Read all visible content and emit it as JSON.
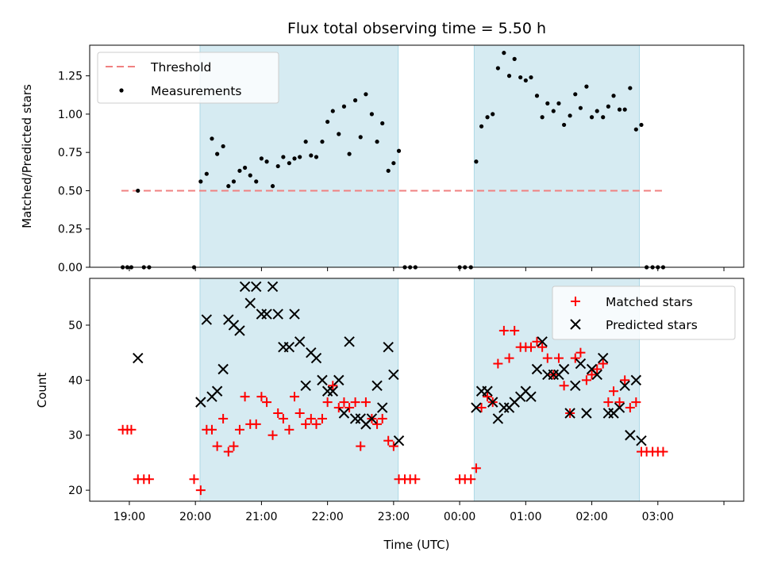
{
  "chart_data": [
    {
      "type": "scatter",
      "title": "Flux total observing time = 5.50 h",
      "xlabel": "",
      "ylabel": "Matched/Predicted stars",
      "xlim": [
        -0.6,
        9.3
      ],
      "ylim": [
        0,
        1.45
      ],
      "yticks": [
        0,
        0.25,
        0.5,
        0.75,
        1.0,
        1.25
      ],
      "yticklabels": [
        "0.00",
        "0.25",
        "0.50",
        "0.75",
        "1.00",
        "1.25"
      ],
      "grid": false,
      "legend_position": "top-left",
      "shaded_intervals": [
        [
          1.07,
          4.07
        ],
        [
          5.22,
          7.72
        ]
      ],
      "threshold": {
        "name": "Threshold",
        "y": 0.5,
        "x_range": [
          -0.12,
          8.1
        ],
        "color": "#f08080"
      },
      "series": [
        {
          "name": "Measurements",
          "color": "#000000",
          "marker": "dot",
          "points": [
            [
              -0.1,
              0
            ],
            [
              -0.03,
              0
            ],
            [
              0.03,
              0
            ],
            [
              0.13,
              0.5
            ],
            [
              0.22,
              0
            ],
            [
              0.3,
              0
            ],
            [
              0.98,
              0
            ],
            [
              1.08,
              0.56
            ],
            [
              1.17,
              0.61
            ],
            [
              1.25,
              0.84
            ],
            [
              1.33,
              0.74
            ],
            [
              1.42,
              0.79
            ],
            [
              1.5,
              0.53
            ],
            [
              1.58,
              0.56
            ],
            [
              1.67,
              0.63
            ],
            [
              1.75,
              0.65
            ],
            [
              1.83,
              0.6
            ],
            [
              1.92,
              0.56
            ],
            [
              2.0,
              0.71
            ],
            [
              2.08,
              0.69
            ],
            [
              2.17,
              0.53
            ],
            [
              2.25,
              0.66
            ],
            [
              2.33,
              0.72
            ],
            [
              2.42,
              0.68
            ],
            [
              2.5,
              0.71
            ],
            [
              2.58,
              0.72
            ],
            [
              2.67,
              0.82
            ],
            [
              2.75,
              0.73
            ],
            [
              2.83,
              0.72
            ],
            [
              2.92,
              0.82
            ],
            [
              3.0,
              0.95
            ],
            [
              3.08,
              1.02
            ],
            [
              3.17,
              0.87
            ],
            [
              3.25,
              1.05
            ],
            [
              3.33,
              0.74
            ],
            [
              3.42,
              1.09
            ],
            [
              3.5,
              0.85
            ],
            [
              3.58,
              1.13
            ],
            [
              3.67,
              1.0
            ],
            [
              3.75,
              0.82
            ],
            [
              3.83,
              0.94
            ],
            [
              3.92,
              0.63
            ],
            [
              4.0,
              0.68
            ],
            [
              4.08,
              0.76
            ],
            [
              4.17,
              0
            ],
            [
              4.25,
              0
            ],
            [
              4.33,
              0
            ],
            [
              5.0,
              0
            ],
            [
              5.08,
              0
            ],
            [
              5.17,
              0
            ],
            [
              5.25,
              0.69
            ],
            [
              5.33,
              0.92
            ],
            [
              5.42,
              0.98
            ],
            [
              5.5,
              1.0
            ],
            [
              5.58,
              1.3
            ],
            [
              5.67,
              1.4
            ],
            [
              5.75,
              1.25
            ],
            [
              5.83,
              1.36
            ],
            [
              5.92,
              1.24
            ],
            [
              6.0,
              1.22
            ],
            [
              6.08,
              1.24
            ],
            [
              6.17,
              1.12
            ],
            [
              6.25,
              0.98
            ],
            [
              6.33,
              1.07
            ],
            [
              6.42,
              1.02
            ],
            [
              6.5,
              1.07
            ],
            [
              6.58,
              0.93
            ],
            [
              6.67,
              0.99
            ],
            [
              6.75,
              1.13
            ],
            [
              6.83,
              1.04
            ],
            [
              6.92,
              1.18
            ],
            [
              7.0,
              0.98
            ],
            [
              7.08,
              1.02
            ],
            [
              7.17,
              0.98
            ],
            [
              7.25,
              1.05
            ],
            [
              7.33,
              1.12
            ],
            [
              7.42,
              1.03
            ],
            [
              7.5,
              1.03
            ],
            [
              7.58,
              1.17
            ],
            [
              7.67,
              0.9
            ],
            [
              7.75,
              0.93
            ],
            [
              7.83,
              0
            ],
            [
              7.92,
              0
            ],
            [
              8.0,
              0
            ],
            [
              8.08,
              0
            ]
          ]
        }
      ]
    },
    {
      "type": "scatter",
      "title": "",
      "xlabel": "Time (UTC)",
      "ylabel": "Count",
      "xlim": [
        -0.6,
        9.3
      ],
      "ylim": [
        18,
        58.5
      ],
      "xticks": [
        0,
        1,
        2,
        3,
        4,
        5,
        6,
        7,
        8,
        9
      ],
      "xticklabels": [
        "19:00",
        "20:00",
        "21:00",
        "22:00",
        "23:00",
        "00:00",
        "01:00",
        "02:00",
        "03:00",
        ""
      ],
      "yticks": [
        20,
        30,
        40,
        50
      ],
      "yticklabels": [
        "20",
        "30",
        "40",
        "50"
      ],
      "grid": false,
      "legend_position": "top-right",
      "shaded_intervals": [
        [
          1.07,
          4.07
        ],
        [
          5.22,
          7.72
        ]
      ],
      "series": [
        {
          "name": "Matched stars",
          "color": "#ff0000",
          "marker": "plus",
          "points": [
            [
              -0.1,
              31
            ],
            [
              -0.03,
              31
            ],
            [
              0.03,
              31
            ],
            [
              0.13,
              22
            ],
            [
              0.22,
              22
            ],
            [
              0.3,
              22
            ],
            [
              0.98,
              22
            ],
            [
              1.08,
              20
            ],
            [
              1.17,
              31
            ],
            [
              1.25,
              31
            ],
            [
              1.33,
              28
            ],
            [
              1.42,
              33
            ],
            [
              1.5,
              27
            ],
            [
              1.58,
              28
            ],
            [
              1.67,
              31
            ],
            [
              1.75,
              37
            ],
            [
              1.83,
              32
            ],
            [
              1.92,
              32
            ],
            [
              2.0,
              37
            ],
            [
              2.08,
              36
            ],
            [
              2.17,
              30
            ],
            [
              2.25,
              34
            ],
            [
              2.33,
              33
            ],
            [
              2.42,
              31
            ],
            [
              2.5,
              37
            ],
            [
              2.58,
              34
            ],
            [
              2.67,
              32
            ],
            [
              2.75,
              33
            ],
            [
              2.83,
              32
            ],
            [
              2.92,
              33
            ],
            [
              3.0,
              36
            ],
            [
              3.08,
              39
            ],
            [
              3.17,
              35
            ],
            [
              3.25,
              36
            ],
            [
              3.33,
              35
            ],
            [
              3.42,
              36
            ],
            [
              3.5,
              28
            ],
            [
              3.58,
              36
            ],
            [
              3.67,
              33
            ],
            [
              3.75,
              32
            ],
            [
              3.83,
              33
            ],
            [
              3.92,
              29
            ],
            [
              4.0,
              28
            ],
            [
              4.08,
              22
            ],
            [
              4.17,
              22
            ],
            [
              4.25,
              22
            ],
            [
              4.33,
              22
            ],
            [
              5.0,
              22
            ],
            [
              5.08,
              22
            ],
            [
              5.17,
              22
            ],
            [
              5.25,
              24
            ],
            [
              5.33,
              35
            ],
            [
              5.42,
              37
            ],
            [
              5.5,
              36
            ],
            [
              5.58,
              43
            ],
            [
              5.67,
              49
            ],
            [
              5.75,
              44
            ],
            [
              5.83,
              49
            ],
            [
              5.92,
              46
            ],
            [
              6.0,
              46
            ],
            [
              6.08,
              46
            ],
            [
              6.17,
              47
            ],
            [
              6.25,
              46
            ],
            [
              6.33,
              44
            ],
            [
              6.42,
              41
            ],
            [
              6.5,
              44
            ],
            [
              6.58,
              39
            ],
            [
              6.67,
              34
            ],
            [
              6.75,
              44
            ],
            [
              6.83,
              45
            ],
            [
              6.92,
              40
            ],
            [
              7.0,
              41
            ],
            [
              7.08,
              42
            ],
            [
              7.17,
              43
            ],
            [
              7.25,
              36
            ],
            [
              7.33,
              38
            ],
            [
              7.42,
              36
            ],
            [
              7.5,
              40
            ],
            [
              7.58,
              35
            ],
            [
              7.67,
              36
            ],
            [
              7.75,
              27
            ],
            [
              7.83,
              27
            ],
            [
              7.92,
              27
            ],
            [
              8.0,
              27
            ],
            [
              8.08,
              27
            ]
          ]
        },
        {
          "name": "Predicted stars",
          "color": "#000000",
          "marker": "x",
          "points": [
            [
              0.13,
              44
            ],
            [
              1.08,
              36
            ],
            [
              1.17,
              51
            ],
            [
              1.25,
              37
            ],
            [
              1.33,
              38
            ],
            [
              1.42,
              42
            ],
            [
              1.5,
              51
            ],
            [
              1.58,
              50
            ],
            [
              1.67,
              49
            ],
            [
              1.75,
              57
            ],
            [
              1.83,
              54
            ],
            [
              1.92,
              57
            ],
            [
              2.0,
              52
            ],
            [
              2.08,
              52
            ],
            [
              2.17,
              57
            ],
            [
              2.25,
              52
            ],
            [
              2.33,
              46
            ],
            [
              2.42,
              46
            ],
            [
              2.5,
              52
            ],
            [
              2.58,
              47
            ],
            [
              2.67,
              39
            ],
            [
              2.75,
              45
            ],
            [
              2.83,
              44
            ],
            [
              2.92,
              40
            ],
            [
              3.0,
              38
            ],
            [
              3.08,
              38
            ],
            [
              3.17,
              40
            ],
            [
              3.25,
              34
            ],
            [
              3.33,
              47
            ],
            [
              3.42,
              33
            ],
            [
              3.5,
              33
            ],
            [
              3.58,
              32
            ],
            [
              3.67,
              33
            ],
            [
              3.75,
              39
            ],
            [
              3.83,
              35
            ],
            [
              3.92,
              46
            ],
            [
              4.0,
              41
            ],
            [
              4.08,
              29
            ],
            [
              5.25,
              35
            ],
            [
              5.33,
              38
            ],
            [
              5.42,
              38
            ],
            [
              5.5,
              36
            ],
            [
              5.58,
              33
            ],
            [
              5.67,
              35
            ],
            [
              5.75,
              35
            ],
            [
              5.83,
              36
            ],
            [
              5.92,
              37
            ],
            [
              6.0,
              38
            ],
            [
              6.08,
              37
            ],
            [
              6.17,
              42
            ],
            [
              6.25,
              47
            ],
            [
              6.33,
              41
            ],
            [
              6.42,
              41
            ],
            [
              6.5,
              41
            ],
            [
              6.58,
              42
            ],
            [
              6.67,
              34
            ],
            [
              6.75,
              39
            ],
            [
              6.83,
              43
            ],
            [
              6.92,
              34
            ],
            [
              7.0,
              42
            ],
            [
              7.08,
              41
            ],
            [
              7.17,
              44
            ],
            [
              7.25,
              34
            ],
            [
              7.33,
              34
            ],
            [
              7.42,
              35
            ],
            [
              7.5,
              39
            ],
            [
              7.58,
              30
            ],
            [
              7.67,
              40
            ],
            [
              7.75,
              29
            ]
          ]
        }
      ]
    }
  ]
}
